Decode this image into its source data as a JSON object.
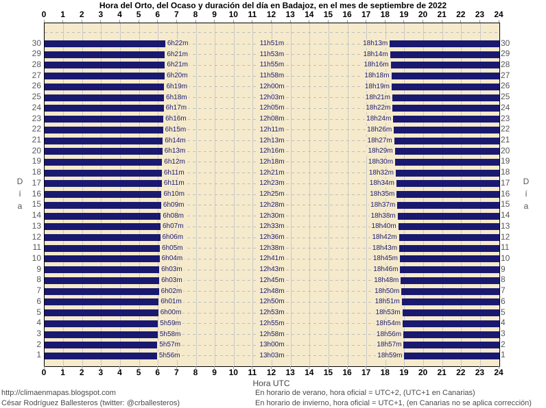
{
  "title": "Hora del Orto, del Ocaso y duración del día en Badajoz, en el mes de septiembre de 2022",
  "axes": {
    "x_label": "Hora UTC",
    "y_label": "Día",
    "x_ticks": [
      "0",
      "1",
      "2",
      "3",
      "4",
      "5",
      "6",
      "7",
      "8",
      "9",
      "10",
      "11",
      "12",
      "13",
      "14",
      "15",
      "16",
      "17",
      "18",
      "19",
      "20",
      "21",
      "22",
      "23",
      "24"
    ]
  },
  "footer": {
    "left_line1": "http://climaenmapas.blogspot.com",
    "left_line2": "César Rodríguez Ballesteros (twitter: @crballesteros)",
    "right_line1": "En horario de verano, hora oficial = UTC+2, (UTC+1 en Canarias)",
    "right_line2": "En horario de invierno, hora oficial = UTC+1, (en Canarias no se aplica corrección)"
  },
  "colors": {
    "night_bar": "#191970",
    "plot_background": "#F5EACB",
    "gridline": "#C9C9C9",
    "dashed_line": "#BDBDBD",
    "row_label_text": "#191970"
  },
  "chart_data": {
    "type": "bar",
    "orientation": "horizontal",
    "title": "Hora del Orto, del Ocaso y duración del día en Badajoz, en el mes de septiembre de 2022",
    "xlabel": "Hora UTC",
    "ylabel": "Día",
    "xlim": [
      0,
      24
    ],
    "x_tick_step": 1,
    "grid": "vertical solid hourly, horizontal dashed per day",
    "legend": "none",
    "note": "Dark bars = night (00:00 to sunrise, sunset to 24:00); light band = daylight. Labels per day: sunrise time, day duration, sunset time.",
    "days": [
      {
        "day": 30,
        "sunrise": "6h22m",
        "duration": "11h51m",
        "sunset": "18h13m"
      },
      {
        "day": 29,
        "sunrise": "6h21m",
        "duration": "11h53m",
        "sunset": "18h14m"
      },
      {
        "day": 28,
        "sunrise": "6h21m",
        "duration": "11h55m",
        "sunset": "18h16m"
      },
      {
        "day": 27,
        "sunrise": "6h20m",
        "duration": "11h58m",
        "sunset": "18h18m"
      },
      {
        "day": 26,
        "sunrise": "6h19m",
        "duration": "12h00m",
        "sunset": "18h19m"
      },
      {
        "day": 25,
        "sunrise": "6h18m",
        "duration": "12h03m",
        "sunset": "18h21m"
      },
      {
        "day": 24,
        "sunrise": "6h17m",
        "duration": "12h05m",
        "sunset": "18h22m"
      },
      {
        "day": 23,
        "sunrise": "6h16m",
        "duration": "12h08m",
        "sunset": "18h24m"
      },
      {
        "day": 22,
        "sunrise": "6h15m",
        "duration": "12h11m",
        "sunset": "18h26m"
      },
      {
        "day": 21,
        "sunrise": "6h14m",
        "duration": "12h13m",
        "sunset": "18h27m"
      },
      {
        "day": 20,
        "sunrise": "6h13m",
        "duration": "12h16m",
        "sunset": "18h29m"
      },
      {
        "day": 19,
        "sunrise": "6h12m",
        "duration": "12h18m",
        "sunset": "18h30m"
      },
      {
        "day": 18,
        "sunrise": "6h11m",
        "duration": "12h21m",
        "sunset": "18h32m"
      },
      {
        "day": 17,
        "sunrise": "6h11m",
        "duration": "12h23m",
        "sunset": "18h34m"
      },
      {
        "day": 16,
        "sunrise": "6h10m",
        "duration": "12h25m",
        "sunset": "18h35m"
      },
      {
        "day": 15,
        "sunrise": "6h09m",
        "duration": "12h28m",
        "sunset": "18h37m"
      },
      {
        "day": 14,
        "sunrise": "6h08m",
        "duration": "12h30m",
        "sunset": "18h38m"
      },
      {
        "day": 13,
        "sunrise": "6h07m",
        "duration": "12h33m",
        "sunset": "18h40m"
      },
      {
        "day": 12,
        "sunrise": "6h06m",
        "duration": "12h36m",
        "sunset": "18h42m"
      },
      {
        "day": 11,
        "sunrise": "6h05m",
        "duration": "12h38m",
        "sunset": "18h43m"
      },
      {
        "day": 10,
        "sunrise": "6h04m",
        "duration": "12h41m",
        "sunset": "18h45m"
      },
      {
        "day": 9,
        "sunrise": "6h03m",
        "duration": "12h43m",
        "sunset": "18h46m"
      },
      {
        "day": 8,
        "sunrise": "6h03m",
        "duration": "12h45m",
        "sunset": "18h48m"
      },
      {
        "day": 7,
        "sunrise": "6h02m",
        "duration": "12h48m",
        "sunset": "18h50m"
      },
      {
        "day": 6,
        "sunrise": "6h01m",
        "duration": "12h50m",
        "sunset": "18h51m"
      },
      {
        "day": 5,
        "sunrise": "6h00m",
        "duration": "12h53m",
        "sunset": "18h53m"
      },
      {
        "day": 4,
        "sunrise": "5h59m",
        "duration": "12h55m",
        "sunset": "18h54m"
      },
      {
        "day": 3,
        "sunrise": "5h58m",
        "duration": "12h58m",
        "sunset": "18h56m"
      },
      {
        "day": 2,
        "sunrise": "5h57m",
        "duration": "13h00m",
        "sunset": "18h57m"
      },
      {
        "day": 1,
        "sunrise": "5h56m",
        "duration": "13h03m",
        "sunset": "18h59m"
      }
    ]
  }
}
